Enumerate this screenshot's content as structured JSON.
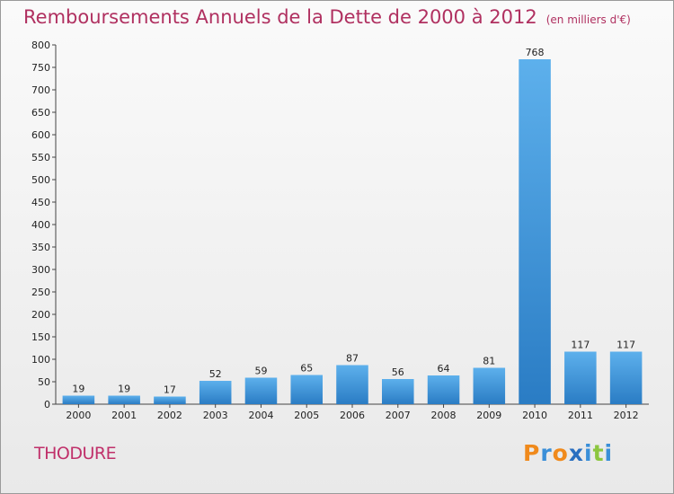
{
  "title": "Remboursements Annuels de la Dette de 2000 à 2012",
  "unit": "(en milliers d'€)",
  "commune": "THODURE",
  "logo": {
    "letters": [
      "P",
      "r",
      "o",
      "x",
      "i",
      "t",
      "i"
    ],
    "colors": [
      "#f08a1c",
      "#3a8fd8",
      "#f08a1c",
      "#2a6fc0",
      "#3a8fd8",
      "#8cc63f",
      "#3a8fd8"
    ]
  },
  "chart_data": {
    "type": "bar",
    "title": "Remboursements Annuels de la Dette de 2000 à 2012",
    "unit": "(en milliers d'€)",
    "categories": [
      "2000",
      "2001",
      "2002",
      "2003",
      "2004",
      "2005",
      "2006",
      "2007",
      "2008",
      "2009",
      "2010",
      "2011",
      "2012"
    ],
    "values": [
      19,
      19,
      17,
      52,
      59,
      65,
      87,
      56,
      64,
      81,
      768,
      117,
      117
    ],
    "ylim": [
      0,
      800
    ],
    "yticks": [
      0,
      50,
      100,
      150,
      200,
      250,
      300,
      350,
      400,
      450,
      500,
      550,
      600,
      650,
      700,
      750,
      800
    ],
    "grid": false,
    "bar_color": "#4a9fe0"
  }
}
